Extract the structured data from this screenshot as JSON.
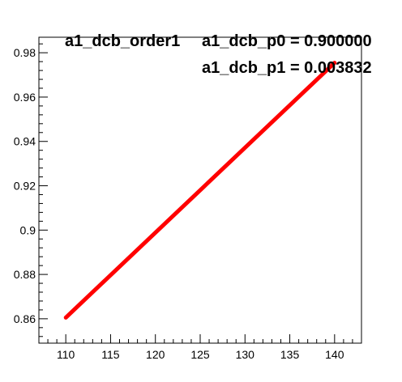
{
  "chart_data": {
    "type": "line",
    "title": "a1_dcb_order1",
    "stats": [
      {
        "label": "a1_dcb_p0 = 0.900000"
      },
      {
        "label": "a1_dcb_p1 = 0.003832"
      }
    ],
    "xlabel": "",
    "ylabel": "",
    "xlim": [
      107,
      143
    ],
    "ylim": [
      0.849,
      0.987
    ],
    "xticks": [
      110,
      115,
      120,
      125,
      130,
      135,
      140
    ],
    "yticks": [
      0.86,
      0.88,
      0.9,
      0.92,
      0.94,
      0.96,
      0.98
    ],
    "ytick_labels": [
      "0.86",
      "0.88",
      "0.9",
      "0.92",
      "0.94",
      "0.96",
      "0.98"
    ],
    "grid": false,
    "series": [
      {
        "color": "#ff0000",
        "x": [
          110,
          140
        ],
        "y": [
          0.86052,
          0.97548
        ]
      }
    ]
  }
}
